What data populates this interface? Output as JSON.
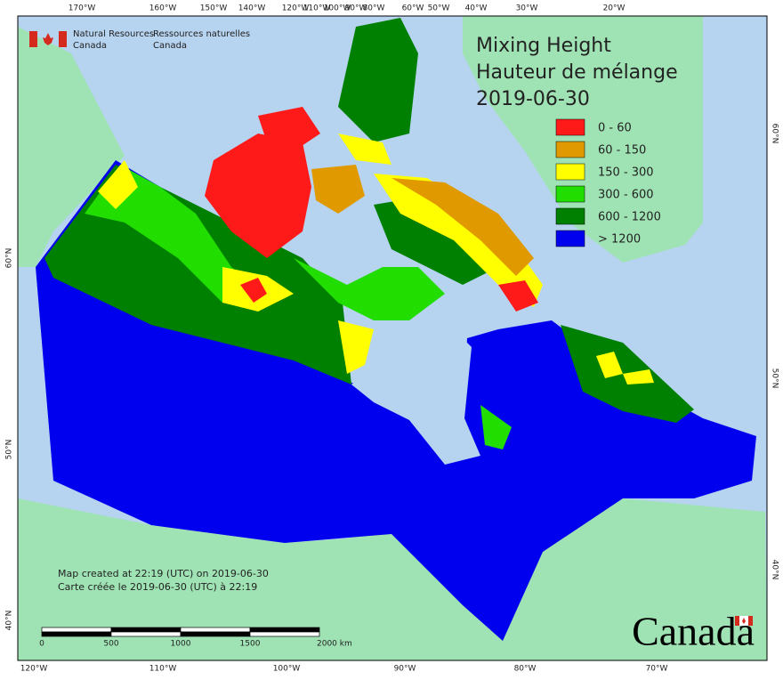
{
  "header": {
    "agency_en": [
      "Natural Resources",
      "Canada"
    ],
    "agency_fr": [
      "Ressources naturelles",
      "Canada"
    ]
  },
  "title": [
    "Mixing Height",
    "Hauteur de mélange",
    "2019-06-30"
  ],
  "legend": [
    {
      "label": "0 - 60",
      "color": "#ff1a1a"
    },
    {
      "label": "60 - 150",
      "color": "#e09a00"
    },
    {
      "label": "150 - 300",
      "color": "#ffff00"
    },
    {
      "label": "300 - 600",
      "color": "#22dd00"
    },
    {
      "label": "600 - 1200",
      "color": "#008000"
    },
    {
      "label": "> 1200",
      "color": "#0000ee"
    }
  ],
  "graticule": {
    "top": [
      "170°W",
      "160°W",
      "150°W",
      "140°W",
      "120°W",
      "110°W",
      "100°W",
      "90°W",
      "80°W",
      "60°W",
      "50°W",
      "40°W",
      "30°W",
      "20°W"
    ],
    "bottom": [
      "120°W",
      "110°W",
      "100°W",
      "90°W",
      "80°W",
      "70°W"
    ],
    "left": [
      "60°N",
      "50°N",
      "40°N"
    ],
    "right": [
      "60°N",
      "50°N",
      "40°N"
    ]
  },
  "notes": [
    "Map created at 22:19 (UTC) on 2019-06-30",
    "Carte créée le 2019-06-30 (UTC) à 22:19"
  ],
  "scale_bar": [
    "0",
    "500",
    "1000",
    "1500",
    "2000 km"
  ],
  "wordmark": "Canada"
}
